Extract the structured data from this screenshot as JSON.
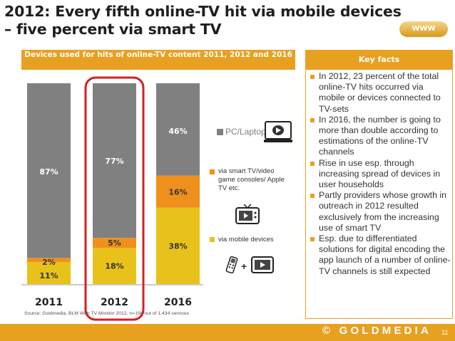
{
  "slide": {
    "title": "2012: Every fifth online-TV hit via mobile devices – five percent via smart TV",
    "badge": "WWW",
    "page_number": "11",
    "footer_logo": "© GOLDMEDIA",
    "source": "Source: Goldmedia, BLM Web TV Monitor 2012, n=198 out of 1,434 services"
  },
  "chart_panel": {
    "header": "Devices used for hits of online-TV content 2011, 2012 and 2016"
  },
  "key_facts": {
    "header": "Key facts",
    "items": [
      "In 2012, 23 percent of the total online-TV hits occurred via mobile or devices connected to TV-sets",
      "In 2016, the number is going to more than double according to estimations of the online-TV channels",
      "Rise in use esp. through increasing spread of devices in user households",
      "Partly providers whose growth in outreach in 2012 resulted exclusively from the increasing use of smart TV",
      "Esp. due to differentiated solutions for digital encoding the app launch of a number of online-TV channels is still expected"
    ]
  },
  "legend": {
    "pc": "PC/Laptop",
    "smart_tv": "via smart TV/video game consoles/ Apple TV etc.",
    "mobile": "via mobile devices",
    "plus": "+"
  },
  "colors": {
    "accent": "#e8a020",
    "pc": "#808080",
    "smart_tv": "#f0901c",
    "mobile": "#e8c21a",
    "highlight": "#d42020"
  },
  "chart_data": {
    "type": "bar",
    "stacked": true,
    "categories": [
      "2011",
      "2012",
      "2016"
    ],
    "series": [
      {
        "name": "via mobile devices",
        "values": [
          11,
          18,
          38
        ],
        "labels": [
          "11%",
          "18%",
          "38%"
        ]
      },
      {
        "name": "via smart TV/video game consoles/ Apple TV etc.",
        "values": [
          2,
          5,
          16
        ],
        "labels": [
          "2%",
          "5%",
          "16%"
        ]
      },
      {
        "name": "PC/Laptop",
        "values": [
          87,
          77,
          46
        ],
        "labels": [
          "87%",
          "77%",
          "46%"
        ]
      }
    ],
    "highlighted_category": "2012",
    "ylim": [
      0,
      100
    ]
  }
}
